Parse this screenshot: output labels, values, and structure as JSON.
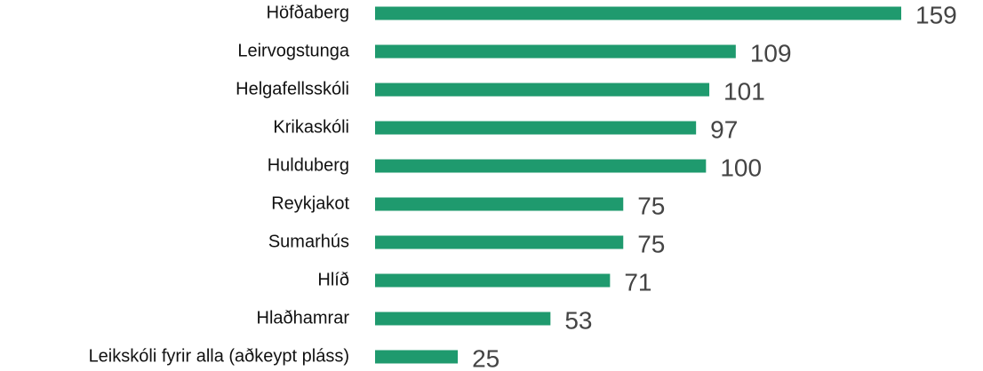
{
  "chart_data": {
    "type": "bar",
    "orientation": "horizontal",
    "categories": [
      "Höfðaberg",
      "Leirvogstunga",
      "Helgafellsskóli",
      "Krikaskóli",
      "Hulduberg",
      "Reykjakot",
      "Sumarhús",
      "Hlíð",
      "Hlaðhamrar",
      "Leikskóli fyrir alla (aðkeypt pláss)"
    ],
    "values": [
      159,
      109,
      101,
      97,
      100,
      75,
      75,
      71,
      53,
      25
    ],
    "color": "#1f9a6e"
  }
}
